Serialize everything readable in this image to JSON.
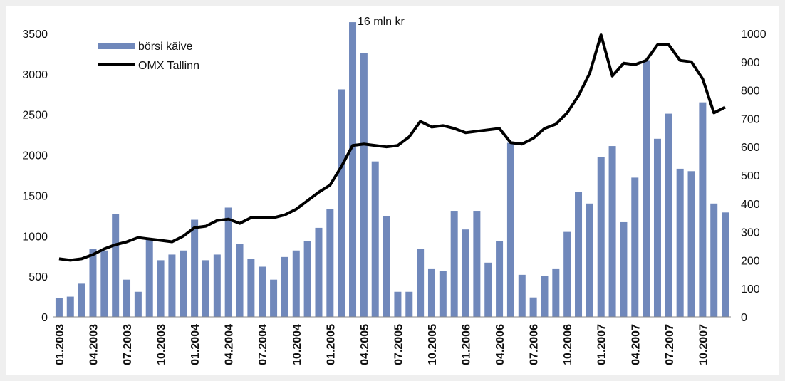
{
  "chart_data": {
    "type": "bar",
    "categories": [
      "01.2003",
      null,
      null,
      "04.2003",
      null,
      null,
      "07.2003",
      null,
      null,
      "10.2003",
      null,
      null,
      "01.2004",
      null,
      null,
      "04.2004",
      null,
      null,
      "07.2004",
      null,
      null,
      "10.2004",
      null,
      null,
      "01.2005",
      null,
      null,
      "04.2005",
      null,
      null,
      "07.2005",
      null,
      null,
      "10.2005",
      null,
      null,
      "01.2006",
      null,
      null,
      "04.2006",
      null,
      null,
      "07.2006",
      null,
      null,
      "10.2006",
      null,
      null,
      "01.2007",
      null,
      null,
      "04.2007",
      null,
      null,
      "07.2007",
      null,
      null,
      "10.2007",
      null,
      null
    ],
    "series": [
      {
        "name": "börsi käive",
        "color": "#7088bb",
        "type": "bar",
        "values": [
          230,
          250,
          410,
          840,
          820,
          1270,
          460,
          310,
          970,
          700,
          770,
          820,
          1200,
          700,
          770,
          1350,
          900,
          720,
          620,
          460,
          740,
          820,
          940,
          1100,
          1330,
          2810,
          3640,
          3260,
          1920,
          1240,
          310,
          310,
          840,
          590,
          570,
          1310,
          1080,
          1310,
          670,
          940,
          2150,
          520,
          240,
          510,
          590,
          1050,
          1540,
          1400,
          1970,
          2110,
          1170,
          1720,
          3170,
          2200,
          2510,
          1830,
          1800,
          2650,
          1400,
          1290
        ]
      },
      {
        "name": "OMX Tallinn",
        "color": "#000000",
        "type": "line",
        "axis": "y2",
        "values": [
          205,
          200,
          205,
          220,
          240,
          255,
          265,
          280,
          275,
          270,
          265,
          285,
          315,
          320,
          340,
          345,
          330,
          350,
          350,
          350,
          360,
          380,
          410,
          440,
          465,
          530,
          605,
          610,
          605,
          600,
          605,
          635,
          690,
          670,
          675,
          665,
          650,
          655,
          660,
          665,
          615,
          610,
          630,
          665,
          680,
          720,
          780,
          860,
          995,
          850,
          895,
          890,
          905,
          960,
          960,
          905,
          900,
          840,
          720,
          740
        ]
      }
    ],
    "annotations": [
      {
        "text": "16 mln kr",
        "index": 26
      }
    ],
    "ylim": [
      0,
      3500
    ],
    "yticks": [
      0,
      500,
      1000,
      1500,
      2000,
      2500,
      3000,
      3500
    ],
    "y2lim": [
      0,
      1000
    ],
    "y2ticks": [
      0,
      100,
      200,
      300,
      400,
      500,
      600,
      700,
      800,
      900,
      1000
    ],
    "legend": "upper left",
    "grid": false
  }
}
